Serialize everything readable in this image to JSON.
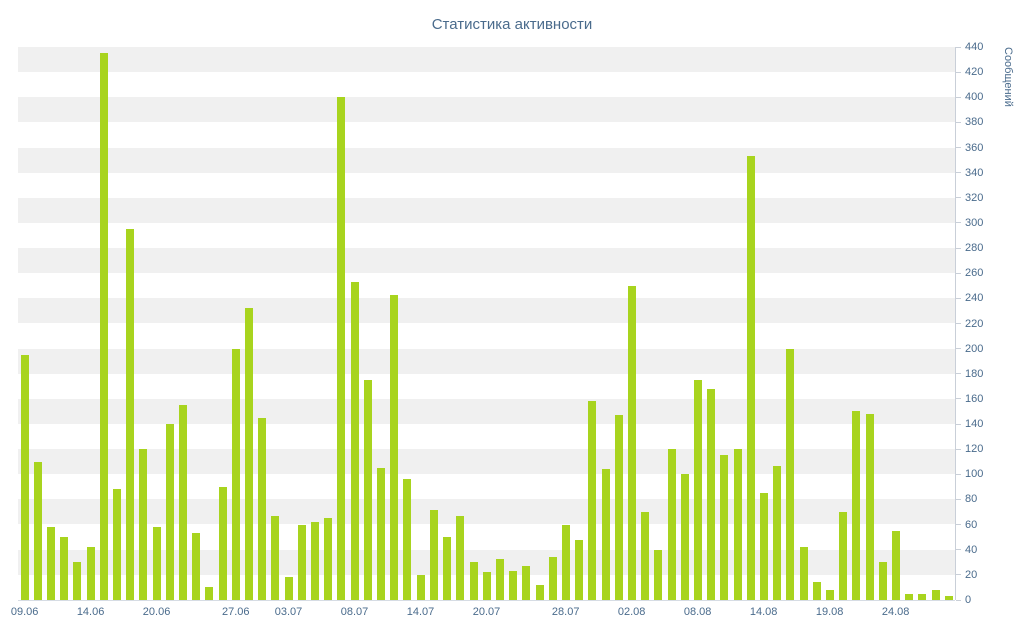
{
  "chart_data": {
    "type": "bar",
    "title": "Статистика активности",
    "ylabel": "Сообщений",
    "xlabel": "",
    "ylim": [
      0,
      440
    ],
    "y_tick_step": 20,
    "y_ticks": [
      0,
      20,
      40,
      60,
      80,
      100,
      120,
      140,
      160,
      180,
      200,
      220,
      240,
      260,
      280,
      300,
      320,
      340,
      360,
      380,
      400,
      420,
      440
    ],
    "x_tick_labels": [
      "09.06",
      "14.06",
      "20.06",
      "27.06",
      "03.07",
      "08.07",
      "14.07",
      "20.07",
      "28.07",
      "02.08",
      "08.08",
      "14.08",
      "19.08",
      "24.08"
    ],
    "x_tick_indices": [
      0,
      5,
      10,
      16,
      20,
      25,
      30,
      35,
      41,
      46,
      51,
      56,
      61,
      66
    ],
    "values": [
      195,
      110,
      58,
      50,
      30,
      42,
      435,
      88,
      295,
      120,
      58,
      140,
      155,
      53,
      10,
      90,
      200,
      232,
      145,
      67,
      18,
      60,
      62,
      65,
      400,
      253,
      175,
      105,
      243,
      96,
      20,
      72,
      50,
      67,
      30,
      22,
      33,
      23,
      27,
      12,
      34,
      60,
      48,
      158,
      104,
      147,
      250,
      70,
      40,
      120,
      100,
      175,
      168,
      115,
      120,
      353,
      85,
      107,
      200,
      42,
      14,
      8,
      70,
      150,
      148,
      30,
      55,
      5,
      5,
      8,
      3
    ],
    "bar_color": "#a8d41e",
    "band_color": "#f0f0f0",
    "axis_text_color": "#4a6b8c",
    "grid": "alternating horizontal bands",
    "legend_position": "none"
  }
}
